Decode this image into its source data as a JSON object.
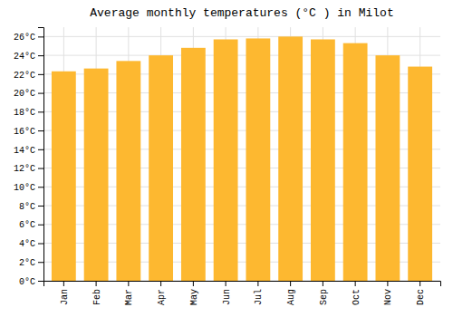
{
  "chart_data": {
    "type": "bar",
    "title": "Average monthly temperatures (°C ) in Milot",
    "categories": [
      "Jan",
      "Feb",
      "Mar",
      "Apr",
      "May",
      "Jun",
      "Jul",
      "Aug",
      "Sep",
      "Oct",
      "Nov",
      "Dec"
    ],
    "values": [
      22.3,
      22.6,
      23.4,
      24.0,
      24.8,
      25.7,
      25.8,
      26.0,
      25.7,
      25.3,
      24.0,
      22.8
    ],
    "color": "#FDB830",
    "ylim": [
      0,
      27
    ],
    "yticks": [
      {
        "value": 0,
        "label": "0°C"
      },
      {
        "value": 2,
        "label": "2°C"
      },
      {
        "value": 4,
        "label": "4°C"
      },
      {
        "value": 6,
        "label": "6°C"
      },
      {
        "value": 8,
        "label": "8°C"
      },
      {
        "value": 10,
        "label": "10°C"
      },
      {
        "value": 12,
        "label": "12°C"
      },
      {
        "value": 14,
        "label": "14°C"
      },
      {
        "value": 16,
        "label": "16°C"
      },
      {
        "value": 18,
        "label": "18°C"
      },
      {
        "value": 20,
        "label": "20°C"
      },
      {
        "value": 22,
        "label": "22°C"
      },
      {
        "value": 24,
        "label": "24°C"
      },
      {
        "value": 26,
        "label": "26°C"
      }
    ],
    "grid": true
  }
}
